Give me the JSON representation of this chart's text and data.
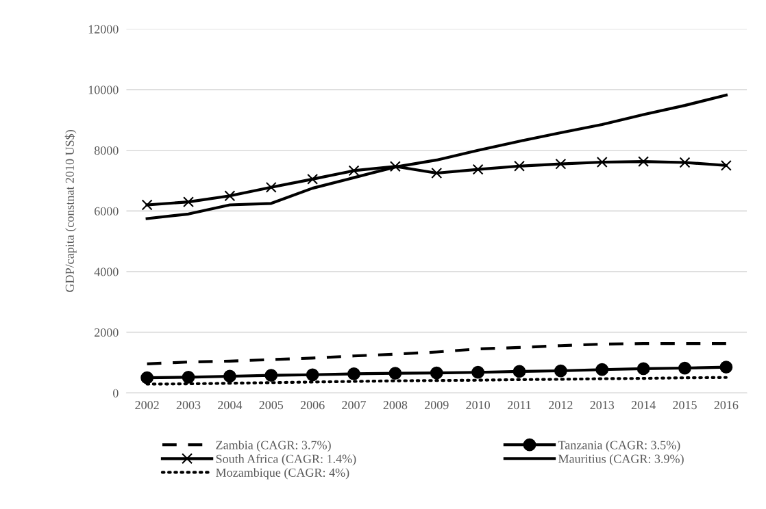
{
  "chart_data": {
    "type": "line",
    "ylabel": "GDP/capita (constnat 2010 US$)",
    "categories": [
      "2002",
      "2003",
      "2004",
      "2005",
      "2006",
      "2007",
      "2008",
      "2009",
      "2010",
      "2011",
      "2012",
      "2013",
      "2014",
      "2015",
      "2016"
    ],
    "ylim": [
      0,
      12000
    ],
    "yticks": [
      0,
      2000,
      4000,
      6000,
      8000,
      10000,
      12000
    ],
    "grid": "y",
    "legend": "bottom",
    "series": [
      {
        "name": "Zambia (CAGR: 3.7%)",
        "color": "#000000",
        "line_style": "dashed",
        "marker": "none",
        "values": [
          960,
          1020,
          1050,
          1100,
          1150,
          1220,
          1280,
          1350,
          1450,
          1500,
          1560,
          1610,
          1630,
          1630,
          1630
        ]
      },
      {
        "name": "Tanzania (CAGR: 3.5%)",
        "color": "#000000",
        "line_style": "solid",
        "marker": "circle",
        "values": [
          500,
          520,
          550,
          580,
          600,
          630,
          650,
          660,
          680,
          710,
          730,
          770,
          800,
          820,
          850
        ]
      },
      {
        "name": "South Africa (CAGR: 1.4%)",
        "color": "#000000",
        "line_style": "solid",
        "marker": "cross",
        "values": [
          6200,
          6300,
          6500,
          6780,
          7050,
          7330,
          7470,
          7250,
          7370,
          7480,
          7550,
          7610,
          7630,
          7600,
          7500
        ]
      },
      {
        "name": "Mauritius (CAGR: 3.9%)",
        "color": "#000000",
        "line_style": "solid",
        "marker": "none",
        "values": [
          5750,
          5900,
          6200,
          6250,
          6750,
          7100,
          7450,
          7680,
          8000,
          8300,
          8580,
          8850,
          9180,
          9480,
          9820
        ]
      },
      {
        "name": "Mozambique (CAGR: 4%)",
        "color": "#000000",
        "line_style": "dotted",
        "marker": "none",
        "values": [
          290,
          300,
          320,
          340,
          360,
          380,
          400,
          410,
          420,
          440,
          450,
          470,
          480,
          500,
          510
        ]
      }
    ]
  }
}
